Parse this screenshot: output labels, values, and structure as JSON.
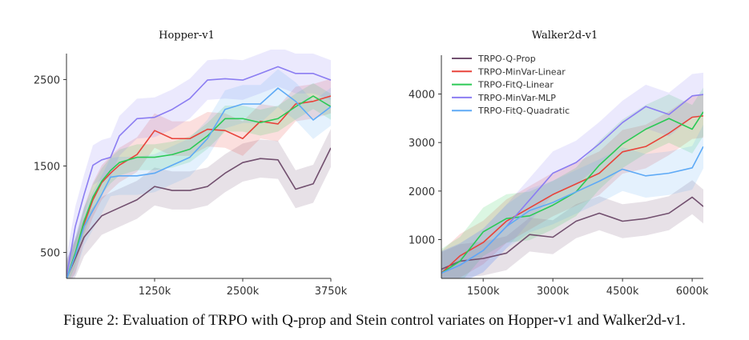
{
  "caption": "Figure 2: Evaluation of TRPO with Q-prop and Stein control variates on Hopper-v1 and Walker2d-v1.",
  "colors": {
    "TRPO-Q-Prop": "#72506f",
    "TRPO-MinVar-Linear": "#e8433a",
    "TRPO-FitQ-Linear": "#2bc955",
    "TRPO-MinVar-MLP": "#8b7df2",
    "TRPO-FitQ-Quadratic": "#5eaaf6"
  },
  "chart_data": [
    {
      "type": "line",
      "title": "Hopper-v1",
      "xlim": [
        0,
        3750
      ],
      "ylim": [
        200,
        2800
      ],
      "xticks": [
        1250,
        2500,
        3750
      ],
      "xtick_labels": [
        "1250k",
        "2500k",
        "3750k"
      ],
      "yticks": [
        500,
        1500,
        2500
      ],
      "ytick_labels": [
        "500",
        "1500",
        "2500"
      ],
      "grid": false,
      "legend": "none",
      "x": [
        0,
        125,
        250,
        375,
        500,
        625,
        750,
        1000,
        1250,
        1500,
        1750,
        2000,
        2250,
        2500,
        2750,
        3000,
        3250,
        3500,
        3750
      ],
      "series": [
        {
          "name": "TRPO-Q-Prop",
          "band": 220,
          "values": [
            200,
            432,
            678,
            801,
            924,
            971,
            1017,
            1109,
            1263,
            1217,
            1217,
            1263,
            1417,
            1540,
            1586,
            1571,
            1232,
            1294,
            1709
          ]
        },
        {
          "name": "TRPO-MinVar-Linear",
          "band": 200,
          "values": [
            190,
            463,
            832,
            1109,
            1309,
            1417,
            1510,
            1632,
            1910,
            1817,
            1817,
            1925,
            1910,
            1817,
            2017,
            1986,
            2217,
            2248,
            2309
          ]
        },
        {
          "name": "TRPO-FitQ-Linear",
          "band": 150,
          "values": [
            190,
            494,
            863,
            1140,
            1324,
            1448,
            1540,
            1601,
            1601,
            1632,
            1694,
            1848,
            2048,
            2048,
            2002,
            2048,
            2186,
            2309,
            2186
          ]
        },
        {
          "name": "TRPO-MinVar-MLP",
          "band": 230,
          "values": [
            220,
            801,
            1171,
            1509,
            1571,
            1600,
            1848,
            2048,
            2063,
            2155,
            2280,
            2494,
            2509,
            2494,
            2570,
            2648,
            2570,
            2570,
            2494
          ]
        },
        {
          "name": "TRPO-FitQ-Quadratic",
          "band": 220,
          "values": [
            190,
            463,
            801,
            986,
            1171,
            1371,
            1386,
            1386,
            1417,
            1509,
            1601,
            1817,
            2155,
            2217,
            2217,
            2401,
            2248,
            2032,
            2186
          ]
        }
      ]
    },
    {
      "type": "line",
      "title": "Walker2d-v1",
      "xlim": [
        600,
        6240
      ],
      "ylim": [
        200,
        4800
      ],
      "xticks": [
        1500,
        3000,
        4500,
        6000
      ],
      "xtick_labels": [
        "1500k",
        "3000k",
        "4500k",
        "6000k"
      ],
      "yticks": [
        1000,
        2000,
        3000,
        4000
      ],
      "ytick_labels": [
        "1000",
        "2000",
        "3000",
        "4000"
      ],
      "grid": false,
      "legend": "top-left",
      "x": [
        600,
        1000,
        1500,
        2000,
        2500,
        3000,
        3500,
        4000,
        4500,
        5000,
        5500,
        6000,
        6240
      ],
      "series": [
        {
          "name": "TRPO-Q-Prop",
          "band": 350,
          "values": [
            390,
            555,
            610,
            720,
            1104,
            1049,
            1379,
            1544,
            1379,
            1434,
            1544,
            1874,
            1682
          ]
        },
        {
          "name": "TRPO-MinVar-Linear",
          "band": 450,
          "values": [
            308,
            665,
            940,
            1379,
            1654,
            1929,
            2148,
            2368,
            2808,
            2918,
            3192,
            3522,
            3549
          ]
        },
        {
          "name": "TRPO-FitQ-Linear",
          "band": 500,
          "values": [
            308,
            555,
            1159,
            1434,
            1489,
            1709,
            1984,
            2533,
            2973,
            3275,
            3495,
            3275,
            3632
          ]
        },
        {
          "name": "TRPO-MinVar-MLP",
          "band": 450,
          "values": [
            308,
            473,
            775,
            1269,
            1819,
            2368,
            2588,
            2973,
            3412,
            3742,
            3577,
            3962,
            3989
          ]
        },
        {
          "name": "TRPO-FitQ-Quadratic",
          "band": 450,
          "values": [
            308,
            473,
            775,
            1269,
            1599,
            1764,
            1984,
            2203,
            2451,
            2313,
            2368,
            2478,
            2918
          ]
        }
      ]
    }
  ]
}
